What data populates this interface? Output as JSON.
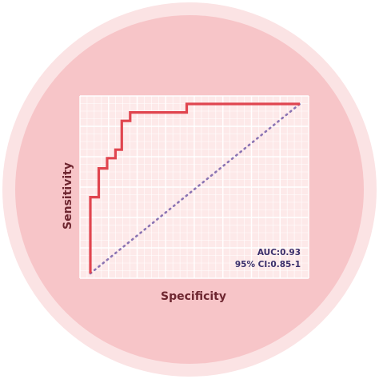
{
  "colors": {
    "outer_ring": "#fbe3e4",
    "disc": "#f7c5c8",
    "plot_bg": "#fde9e9",
    "grid": "#ffffff",
    "roc_curve": "#e0454f",
    "reference_line": "#8b74b3",
    "axis_text": "#6e2630",
    "annotation_text": "#3a2f6b"
  },
  "chart_data": {
    "type": "line",
    "title": "",
    "xlabel": "Specificity",
    "ylabel": "Sensitivity",
    "xlim": [
      0,
      1
    ],
    "ylim": [
      0,
      1
    ],
    "grid": true,
    "legend": "none",
    "annotations": [
      "AUC:0.93",
      "95% CI:0.85-1"
    ],
    "series": [
      {
        "type": "step",
        "x": [
          0.0,
          0.0,
          0.04,
          0.04,
          0.08,
          0.08,
          0.12,
          0.12,
          0.15,
          0.15,
          0.19,
          0.19,
          0.23,
          0.23,
          0.46,
          0.46,
          1.0
        ],
        "y": [
          0.0,
          0.45,
          0.45,
          0.62,
          0.62,
          0.68,
          0.68,
          0.73,
          0.73,
          0.9,
          0.9,
          0.95,
          0.95,
          0.95,
          0.95,
          1.0,
          1.0
        ]
      },
      {
        "type": "dotted",
        "x": [
          0,
          1
        ],
        "y": [
          0,
          1
        ]
      }
    ]
  }
}
